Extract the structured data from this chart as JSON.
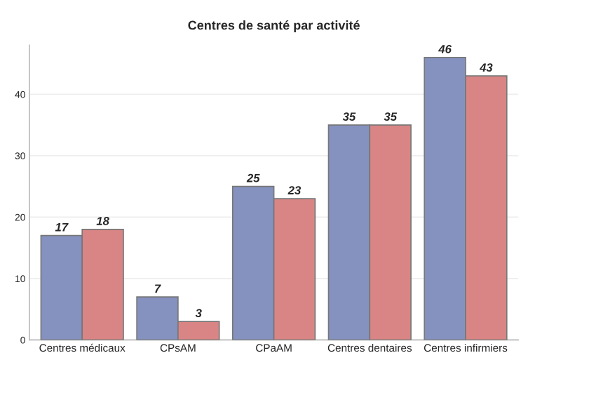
{
  "chart_data": {
    "type": "bar",
    "title": "Centres de santé par activité",
    "categories": [
      "Centres médicaux",
      "CPsAM",
      "CPaAM",
      "Centres dentaires",
      "Centres infirmiers"
    ],
    "series": [
      {
        "color": "#8592c0",
        "values": [
          17,
          7,
          25,
          35,
          46
        ]
      },
      {
        "color": "#d98585",
        "values": [
          18,
          3,
          23,
          35,
          43
        ]
      }
    ],
    "ylim": [
      0,
      48
    ],
    "yticks": [
      0,
      10,
      20,
      30,
      40
    ],
    "grid": "y",
    "data_labels": true
  }
}
